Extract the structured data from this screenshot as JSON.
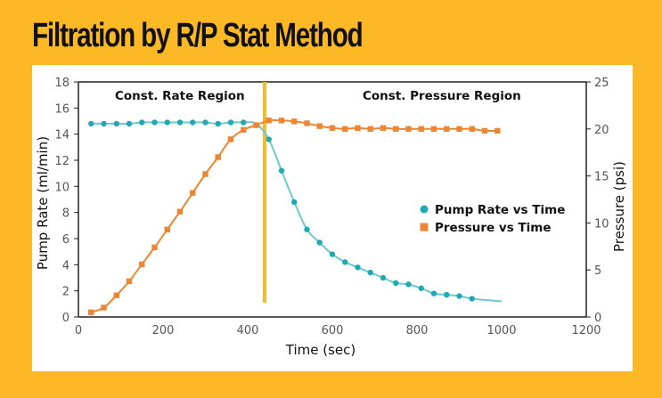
{
  "title": "Filtration by R/P Stat Method",
  "colors": {
    "background": "#FDB825",
    "pump_rate": "#1FA9B5",
    "pressure": "#EE8533",
    "divider": "#FDB825",
    "axis": "#222222"
  },
  "chart_data": {
    "type": "line",
    "title": "Filtration by R/P Stat Method",
    "xlabel": "Time (sec)",
    "ylabel": "Pump Rate (ml/min)",
    "y2label": "Pressure (psi)",
    "xlim": [
      0,
      1200
    ],
    "ylim": [
      0,
      18
    ],
    "y2lim": [
      0,
      25
    ],
    "x_ticks": [
      0,
      200,
      400,
      600,
      800,
      1000,
      1200
    ],
    "y_ticks": [
      0,
      2,
      4,
      6,
      8,
      10,
      12,
      14,
      16,
      18
    ],
    "y2_ticks": [
      0,
      5,
      10,
      15,
      20,
      25
    ],
    "x_tick_labels": [
      "0",
      "200",
      "400",
      "600",
      "800",
      "1000",
      "1200"
    ],
    "y_tick_labels": [
      "0",
      "2",
      "4",
      "6",
      "8",
      "10",
      "12",
      "14",
      "16",
      "18"
    ],
    "y2_tick_labels": [
      "0",
      "5",
      "10",
      "15",
      "20",
      "25"
    ],
    "grid": false,
    "legend_position": "center-right",
    "divider_time": 440,
    "annotations": [
      {
        "text": "Const. Rate Region",
        "region": "left"
      },
      {
        "text": "Const. Pressure Region",
        "region": "right"
      }
    ],
    "series": [
      {
        "name": "Pump Rate vs Time",
        "axis": "left",
        "marker": "circle",
        "x": [
          30,
          60,
          90,
          120,
          150,
          180,
          210,
          240,
          270,
          300,
          330,
          360,
          390,
          450,
          480,
          510,
          540,
          570,
          600,
          630,
          660,
          690,
          720,
          750,
          780,
          810,
          840,
          870,
          900,
          930
        ],
        "y": [
          14.8,
          14.8,
          14.8,
          14.8,
          14.9,
          14.9,
          14.9,
          14.9,
          14.9,
          14.9,
          14.8,
          14.9,
          14.9,
          13.6,
          11.2,
          8.8,
          6.7,
          5.7,
          4.8,
          4.2,
          3.8,
          3.4,
          3.0,
          2.6,
          2.5,
          2.2,
          1.8,
          1.7,
          1.6,
          1.4
        ],
        "line_extension": {
          "x": [
            420,
            960,
            1000
          ],
          "y": [
            14.8,
            1.3,
            1.2
          ]
        }
      },
      {
        "name": "Pressure vs Time",
        "axis": "right",
        "marker": "square",
        "x": [
          30,
          60,
          90,
          120,
          150,
          180,
          210,
          240,
          270,
          300,
          330,
          360,
          390,
          420,
          450,
          480,
          510,
          540,
          570,
          600,
          630,
          660,
          690,
          720,
          750,
          780,
          810,
          840,
          870,
          900,
          930,
          960,
          990
        ],
        "y": [
          0.5,
          1.0,
          2.3,
          3.8,
          5.6,
          7.4,
          9.3,
          11.2,
          13.2,
          15.2,
          17.0,
          18.9,
          19.9,
          20.4,
          20.9,
          20.9,
          20.8,
          20.6,
          20.3,
          20.1,
          20.0,
          20.1,
          20.0,
          20.1,
          20.0,
          20.0,
          20.0,
          20.0,
          20.0,
          20.0,
          20.0,
          19.8,
          19.8
        ]
      }
    ]
  }
}
